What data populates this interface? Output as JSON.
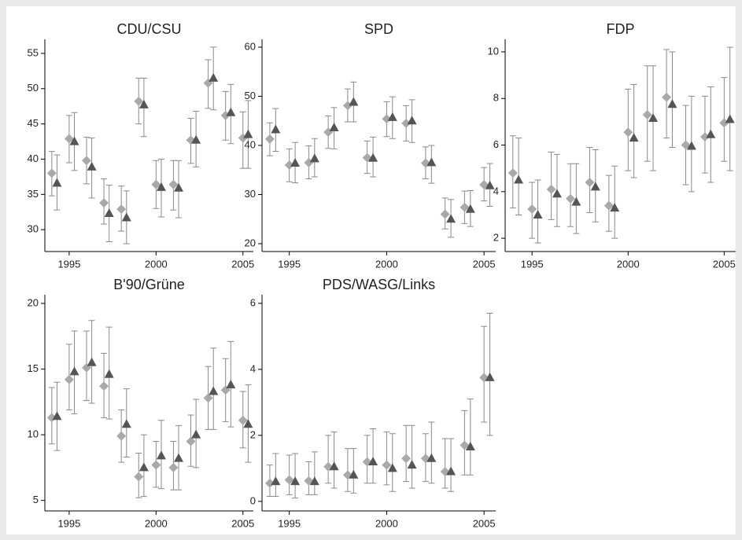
{
  "chart_data": [
    {
      "type": "errorbar",
      "title": "CDU/CSU",
      "xlim": [
        1993.6,
        2005.6
      ],
      "xticks": [
        1995,
        2000,
        2005
      ],
      "ylim": [
        26.9,
        57
      ],
      "yticks": [
        30,
        35,
        40,
        45,
        50,
        55
      ],
      "series": [
        {
          "marker": "diamond",
          "color": "#a9a9a9",
          "x": [
            1994,
            1995,
            1996,
            1997,
            1998,
            1999,
            2000,
            2001,
            2002,
            2003,
            2004,
            2005
          ],
          "values": [
            38.0,
            42.9,
            39.8,
            33.8,
            32.9,
            48.2,
            36.4,
            36.4,
            42.7,
            50.8,
            46.2,
            43.0
          ],
          "lower": [
            34.8,
            39.5,
            36.5,
            30.8,
            29.8,
            45.0,
            33.0,
            32.8,
            39.4,
            47.2,
            42.7,
            38.7
          ],
          "upper": [
            41.1,
            46.2,
            43.1,
            37.2,
            36.2,
            51.5,
            39.8,
            39.8,
            45.8,
            54.1,
            49.6,
            46.7
          ]
        },
        {
          "marker": "triangle",
          "color": "#555555",
          "x": [
            1994.3,
            1995.3,
            1996.3,
            1997.3,
            1998.3,
            1999.3,
            2000.3,
            2001.3,
            2002.3,
            2003.3,
            2004.3,
            2005.3
          ],
          "values": [
            36.6,
            42.5,
            38.9,
            32.3,
            31.7,
            47.7,
            36.0,
            35.9,
            42.7,
            51.5,
            46.6,
            43.5
          ],
          "lower": [
            32.8,
            38.4,
            34.5,
            28.3,
            28.0,
            43.2,
            31.8,
            31.7,
            38.9,
            47.0,
            42.2,
            38.7
          ],
          "upper": [
            40.6,
            46.6,
            43.0,
            36.3,
            35.5,
            51.5,
            40.0,
            39.8,
            46.8,
            55.9,
            50.6,
            48.3
          ]
        }
      ]
    },
    {
      "type": "errorbar",
      "title": "SPD",
      "xlim": [
        1993.6,
        2005.6
      ],
      "xticks": [
        1995,
        2000,
        2005
      ],
      "ylim": [
        18.4,
        61.6
      ],
      "yticks": [
        20,
        30,
        40,
        50,
        60
      ],
      "series": [
        {
          "marker": "diamond",
          "color": "#a9a9a9",
          "x": [
            1994,
            1995,
            1996,
            1997,
            1998,
            1999,
            2000,
            2001,
            2002,
            2003,
            2004,
            2005
          ],
          "values": [
            41.3,
            36.0,
            36.5,
            42.7,
            48.1,
            37.5,
            45.4,
            44.5,
            36.4,
            26.0,
            27.4,
            32.0
          ],
          "lower": [
            37.9,
            32.6,
            33.2,
            39.4,
            44.8,
            34.3,
            41.8,
            40.9,
            33.2,
            23.0,
            24.1,
            28.7
          ],
          "upper": [
            44.6,
            39.3,
            39.9,
            46.0,
            51.5,
            40.9,
            48.9,
            48.1,
            39.7,
            29.3,
            30.7,
            35.5
          ]
        },
        {
          "marker": "triangle",
          "color": "#555555",
          "x": [
            1994.3,
            1995.3,
            1996.3,
            1997.3,
            1998.3,
            1999.3,
            2000.3,
            2001.3,
            2002.3,
            2003.3,
            2004.3,
            2005.3
          ],
          "values": [
            43.2,
            36.4,
            37.3,
            43.6,
            48.8,
            37.4,
            45.7,
            45.0,
            36.5,
            25.0,
            27.0,
            31.8
          ],
          "lower": [
            38.8,
            32.4,
            33.6,
            39.3,
            44.8,
            33.6,
            41.4,
            40.6,
            32.3,
            21.3,
            23.5,
            27.6
          ],
          "upper": [
            47.5,
            40.6,
            41.4,
            47.7,
            52.9,
            41.7,
            49.9,
            49.3,
            40.0,
            29.0,
            30.8,
            36.3
          ]
        }
      ]
    },
    {
      "type": "errorbar",
      "title": "FDP",
      "xlim": [
        1993.6,
        2005.6
      ],
      "xticks": [
        1995,
        2000,
        2005
      ],
      "ylim": [
        1.43,
        10.54
      ],
      "yticks": [
        2,
        4,
        6,
        8,
        10
      ],
      "series": [
        {
          "marker": "diamond",
          "color": "#a9a9a9",
          "x": [
            1994,
            1995,
            1996,
            1997,
            1998,
            1999,
            2000,
            2001,
            2002,
            2003,
            2004,
            2005
          ],
          "values": [
            4.8,
            3.25,
            4.1,
            3.7,
            4.4,
            3.4,
            6.55,
            7.3,
            8.05,
            6.0,
            6.35,
            6.95
          ],
          "lower": [
            3.3,
            2.0,
            2.8,
            2.5,
            3.1,
            2.3,
            4.9,
            5.3,
            6.3,
            4.3,
            4.8,
            5.3
          ],
          "upper": [
            6.4,
            4.4,
            5.7,
            5.2,
            5.9,
            4.7,
            8.4,
            9.4,
            10.1,
            7.7,
            8.1,
            8.9
          ]
        },
        {
          "marker": "triangle",
          "color": "#555555",
          "x": [
            1994.3,
            1995.3,
            1996.3,
            1997.3,
            1998.3,
            1999.3,
            2000.3,
            2001.3,
            2002.3,
            2003.3,
            2004.3,
            2005.3
          ],
          "values": [
            4.5,
            3.0,
            3.9,
            3.55,
            4.2,
            3.3,
            6.3,
            7.15,
            7.75,
            5.95,
            6.45,
            7.1
          ],
          "lower": [
            3.0,
            1.8,
            2.5,
            2.2,
            2.7,
            2.0,
            4.6,
            4.9,
            5.9,
            4.0,
            4.4,
            4.9
          ],
          "upper": [
            6.3,
            4.5,
            5.6,
            5.2,
            5.8,
            5.1,
            8.6,
            9.4,
            10.0,
            8.1,
            8.5,
            10.2
          ]
        }
      ]
    },
    {
      "type": "errorbar",
      "title": "B'90/Grüne",
      "xlim": [
        1993.6,
        2005.6
      ],
      "xticks": [
        1995,
        2000,
        2005
      ],
      "ylim": [
        4.2,
        20.66
      ],
      "yticks": [
        5,
        10,
        15,
        20
      ],
      "series": [
        {
          "marker": "diamond",
          "color": "#a9a9a9",
          "x": [
            1994,
            1995,
            1996,
            1997,
            1998,
            1999,
            2000,
            2001,
            2002,
            2003,
            2004,
            2005
          ],
          "values": [
            11.3,
            14.2,
            15.1,
            13.7,
            9.9,
            6.8,
            7.7,
            7.5,
            9.5,
            12.8,
            13.4,
            11.1
          ],
          "lower": [
            9.3,
            11.9,
            12.6,
            11.3,
            7.9,
            5.2,
            6.0,
            5.8,
            7.6,
            10.4,
            11.0,
            9.0
          ],
          "upper": [
            13.6,
            16.9,
            17.9,
            16.2,
            11.9,
            8.6,
            9.5,
            9.5,
            11.5,
            15.2,
            15.8,
            13.3
          ]
        },
        {
          "marker": "triangle",
          "color": "#555555",
          "x": [
            1994.3,
            1995.3,
            1996.3,
            1997.3,
            1998.3,
            1999.3,
            2000.3,
            2001.3,
            2002.3,
            2003.3,
            2004.3,
            2005.3
          ],
          "values": [
            11.4,
            14.8,
            15.5,
            14.6,
            10.8,
            7.5,
            8.4,
            8.2,
            10.0,
            13.3,
            13.8,
            10.8
          ],
          "lower": [
            8.8,
            11.6,
            12.4,
            11.2,
            8.3,
            5.3,
            5.9,
            5.8,
            7.5,
            10.4,
            10.6,
            7.9
          ],
          "upper": [
            14.0,
            17.9,
            18.7,
            18.2,
            13.5,
            10.0,
            11.1,
            10.7,
            12.7,
            16.6,
            17.1,
            13.8
          ]
        }
      ]
    },
    {
      "type": "errorbar",
      "title": "PDS/WASG/Links",
      "xlim": [
        1993.6,
        2005.6
      ],
      "xticks": [
        1995,
        2000,
        2005
      ],
      "ylim": [
        -0.29,
        6.26
      ],
      "yticks": [
        0,
        2,
        4,
        6
      ],
      "series": [
        {
          "marker": "diamond",
          "color": "#a9a9a9",
          "x": [
            1994,
            1995,
            1996,
            1997,
            1998,
            1999,
            2000,
            2001,
            2002,
            2003,
            2004,
            2005
          ],
          "values": [
            0.55,
            0.65,
            0.62,
            1.05,
            0.8,
            1.2,
            1.1,
            1.3,
            1.3,
            0.9,
            1.7,
            3.75
          ],
          "lower": [
            0.15,
            0.2,
            0.2,
            0.55,
            0.3,
            0.55,
            0.5,
            0.6,
            0.6,
            0.4,
            0.8,
            2.4
          ],
          "upper": [
            1.1,
            1.4,
            1.2,
            2.0,
            1.6,
            2.0,
            2.1,
            2.3,
            2.05,
            1.9,
            2.75,
            5.3
          ]
        },
        {
          "marker": "triangle",
          "color": "#555555",
          "x": [
            1994.3,
            1995.3,
            1996.3,
            1997.3,
            1998.3,
            1999.3,
            2000.3,
            2001.3,
            2002.3,
            2003.3,
            2004.3,
            2005.3
          ],
          "values": [
            0.6,
            0.6,
            0.6,
            1.05,
            0.8,
            1.2,
            1.0,
            1.1,
            1.3,
            0.9,
            1.65,
            3.75
          ],
          "lower": [
            0.15,
            0.1,
            0.2,
            0.4,
            0.25,
            0.55,
            0.3,
            0.4,
            0.55,
            0.3,
            0.8,
            2.0
          ],
          "upper": [
            1.45,
            1.45,
            1.5,
            2.1,
            1.6,
            2.2,
            2.05,
            2.3,
            2.4,
            1.9,
            3.1,
            5.7
          ]
        }
      ]
    }
  ]
}
